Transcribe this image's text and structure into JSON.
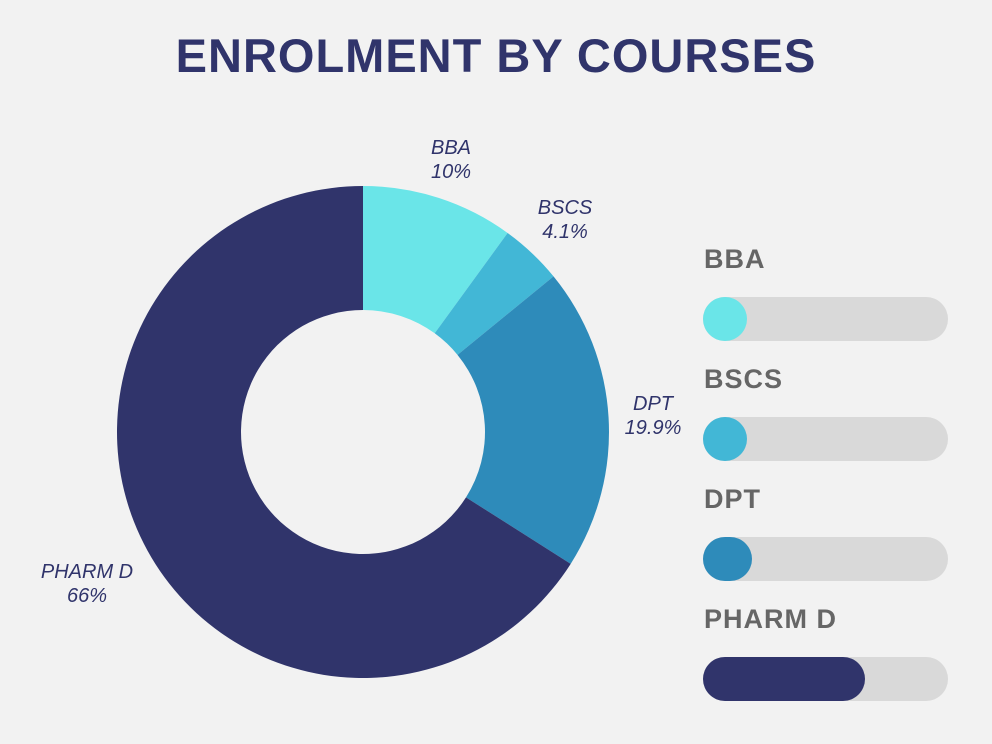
{
  "title": "ENROLMENT BY COURSES",
  "chart_data": {
    "type": "pie",
    "subtype": "donut",
    "title": "ENROLMENT BY COURSES",
    "categories": [
      "BBA",
      "BSCS",
      "DPT",
      "PHARM D"
    ],
    "values": [
      10,
      4.1,
      19.9,
      66
    ],
    "labels": [
      "10%",
      "4.1%",
      "19.9%",
      "66%"
    ],
    "colors": [
      "#6ae5e8",
      "#42b7d6",
      "#2e8bba",
      "#30346b"
    ],
    "legend": "right"
  }
}
